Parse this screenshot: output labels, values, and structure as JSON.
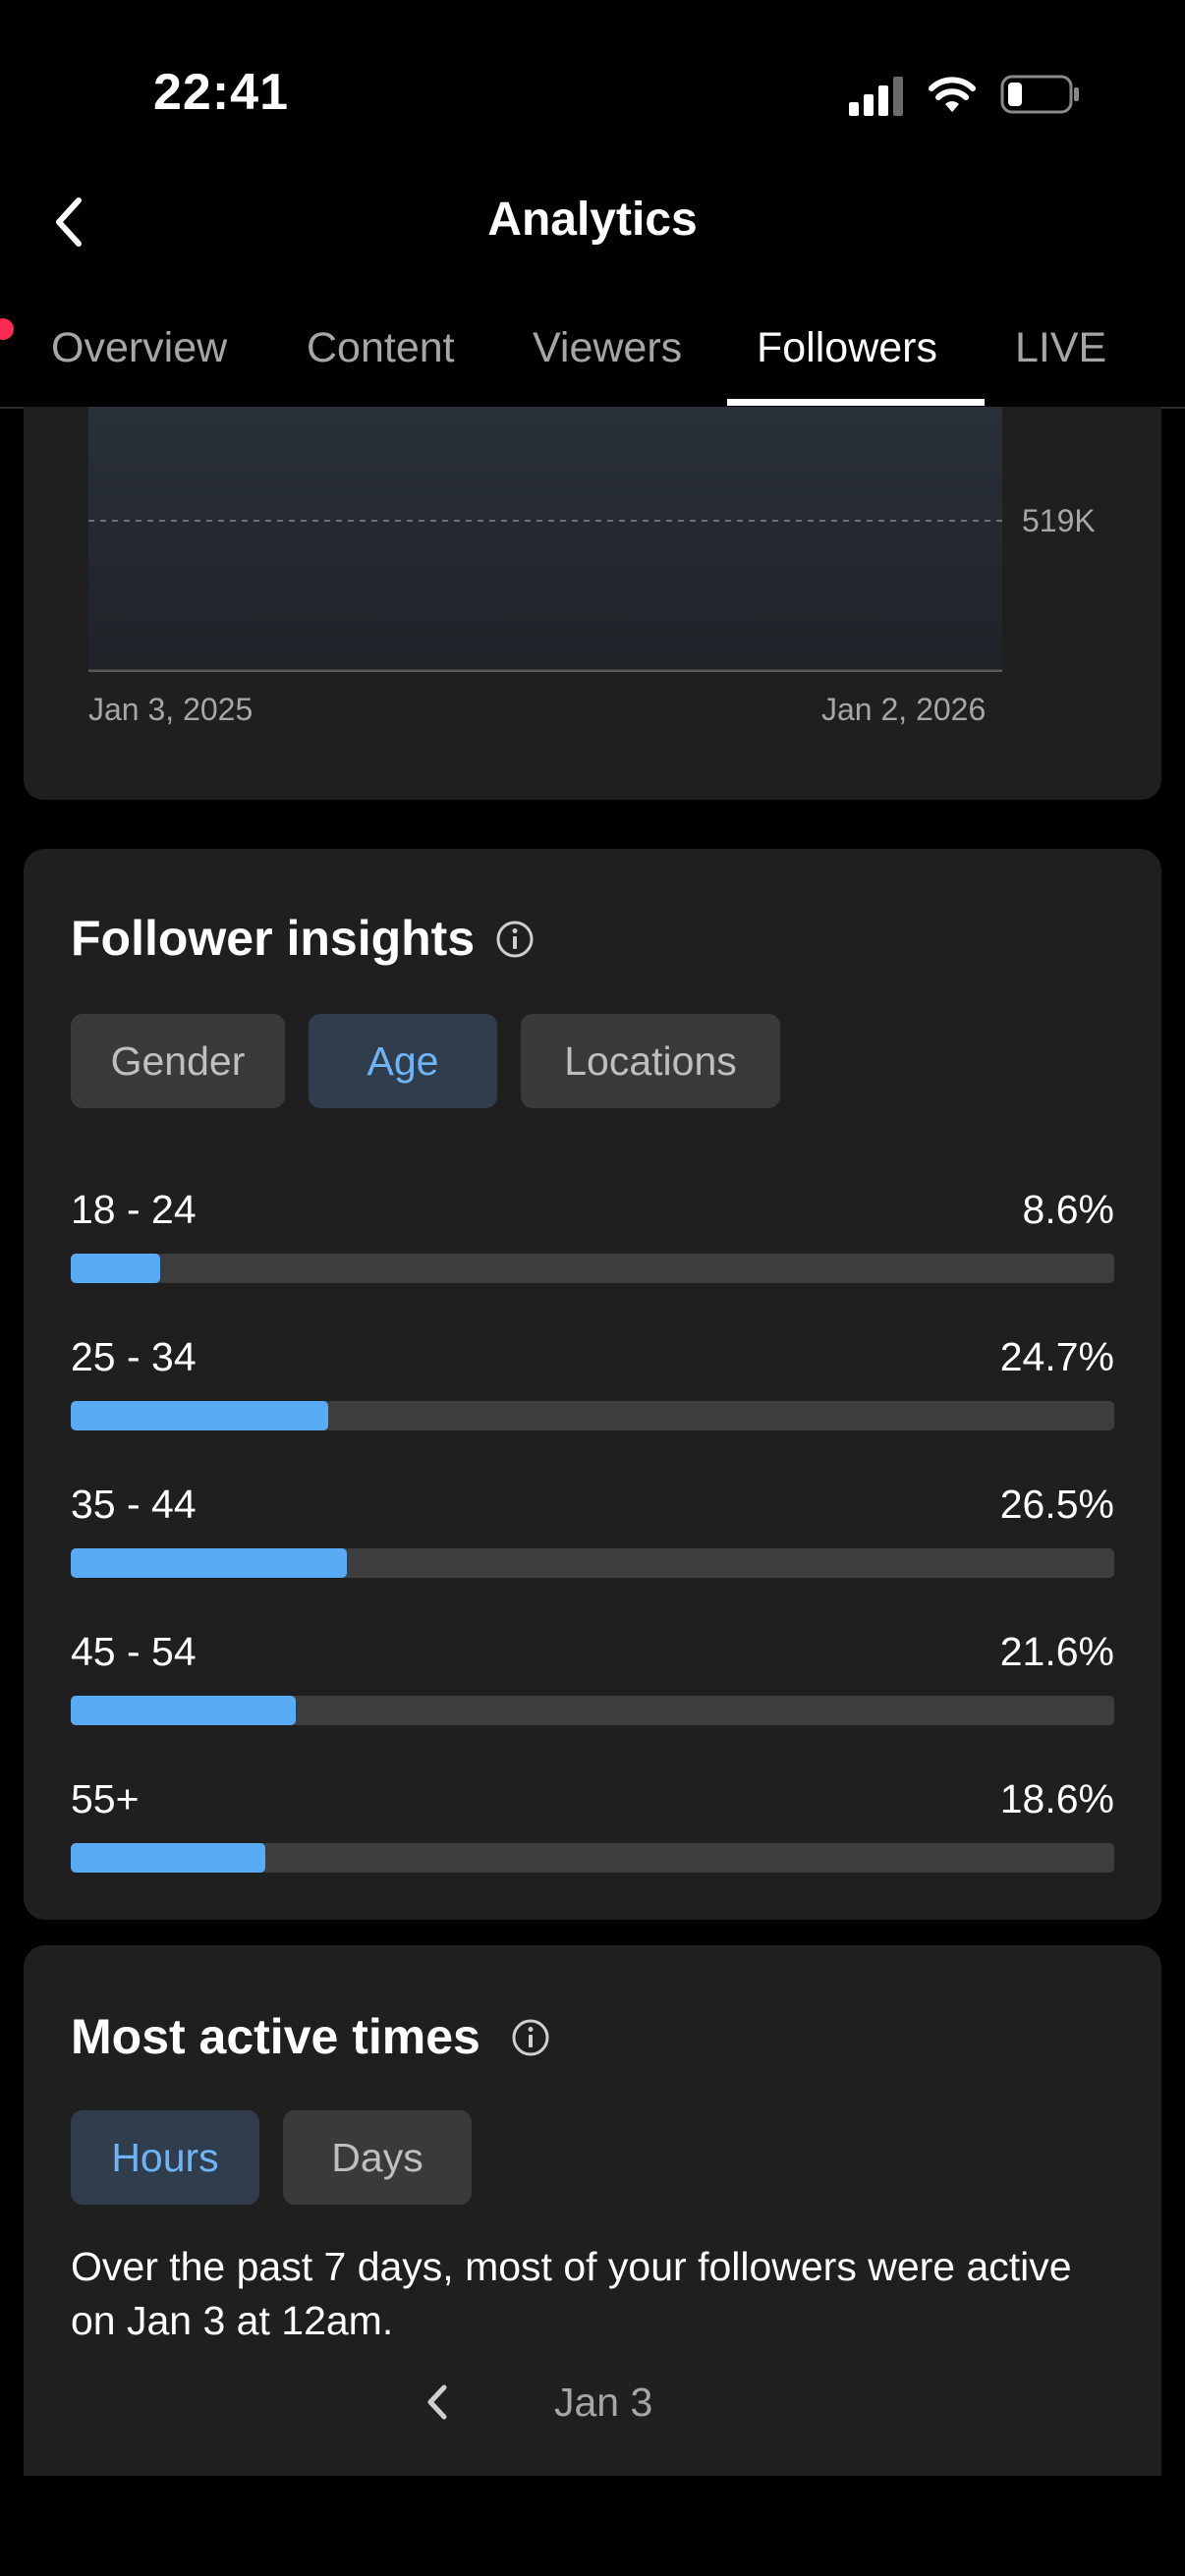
{
  "status_bar": {
    "time": "22:41"
  },
  "header": {
    "title": "Analytics"
  },
  "tabs": [
    {
      "label": "Overview",
      "active": false
    },
    {
      "label": "Content",
      "active": false
    },
    {
      "label": "Viewers",
      "active": false
    },
    {
      "label": "Followers",
      "active": true
    },
    {
      "label": "LIVE",
      "active": false
    }
  ],
  "follower_chart": {
    "reference_line_label": "519K",
    "x_start_label": "Jan 3, 2025",
    "x_end_label": "Jan 2, 2026"
  },
  "follower_insights": {
    "title": "Follower insights",
    "filters": [
      {
        "label": "Gender",
        "active": false
      },
      {
        "label": "Age",
        "active": true
      },
      {
        "label": "Locations",
        "active": false
      }
    ],
    "rows": [
      {
        "label": "18 - 24",
        "value": "8.6%",
        "percent": 8.6
      },
      {
        "label": "25 - 34",
        "value": "24.7%",
        "percent": 24.7
      },
      {
        "label": "35 - 44",
        "value": "26.5%",
        "percent": 26.5
      },
      {
        "label": "45 - 54",
        "value": "21.6%",
        "percent": 21.6
      },
      {
        "label": "55+",
        "value": "18.6%",
        "percent": 18.6
      }
    ]
  },
  "most_active": {
    "title": "Most active times",
    "filters": [
      {
        "label": "Hours",
        "active": true
      },
      {
        "label": "Days",
        "active": false
      }
    ],
    "description": "Over the past 7 days, most of your followers were active on Jan 3 at 12am.",
    "date_label": "Jan 3"
  },
  "colors": {
    "accent": "#5aabf6",
    "card_bg": "#1f1f1f",
    "live_dot": "#fe2c55"
  }
}
